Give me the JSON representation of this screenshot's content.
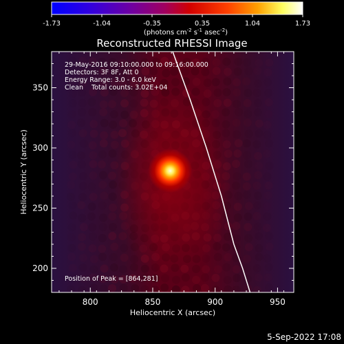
{
  "chart_data": {
    "type": "heatmap",
    "title": "Reconstructed RHESSI Image",
    "xlabel": "Heliocentric X (arcsec)",
    "ylabel": "Heliocentric Y (arcsec)",
    "xlim": [
      769,
      963
    ],
    "ylim": [
      180,
      380
    ],
    "xticks": [
      800,
      850,
      900,
      950
    ],
    "yticks": [
      200,
      250,
      300,
      350
    ],
    "colorbar": {
      "ticks": [
        "-1.73",
        "-1.04",
        "-0.35",
        "0.35",
        "1.04",
        "1.73"
      ],
      "units_text": "(photons cm",
      "units_exp1": "-2",
      "units_mid": " s",
      "units_exp2": "-1",
      "units_mid2": " asec",
      "units_exp3": "-2",
      "units_end": ")",
      "colors": [
        "#0000ff",
        "#5a00c8",
        "#a00080",
        "#d20000",
        "#ff4000",
        "#ffa000",
        "#ffff80",
        "#ffffff"
      ]
    },
    "annotations": [
      "29-May-2016 09:10:00.000 to 09:16:00.000",
      "Detectors: 3F 8F, Att 0",
      "Energy Range: 3.0 - 6.0 keV",
      "Clean    Total counts: 3.02E+04"
    ],
    "peak_label": "Position of Peak = [864,281]",
    "peak": [
      864,
      281
    ],
    "limb": {
      "x": [
        866,
        880,
        893,
        905,
        915,
        922,
        928
      ],
      "y": [
        380,
        340,
        300,
        260,
        220,
        200,
        180
      ]
    },
    "colors": {
      "background": "#000000",
      "outer": "#2a1040",
      "center": "#5a0018",
      "limb_line": "#ffffff"
    }
  },
  "footer": {
    "timestamp": "5-Sep-2022 17:08"
  }
}
